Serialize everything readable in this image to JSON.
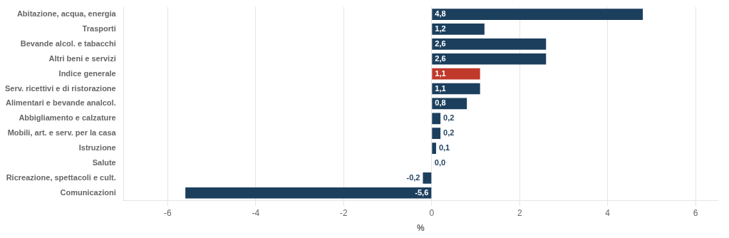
{
  "chart_data": {
    "type": "bar",
    "orientation": "horizontal",
    "categories": [
      "Abitazione, acqua, energia",
      "Trasporti",
      "Bevande alcol. e tabacchi",
      "Altri beni e servizi",
      "Indice generale",
      "Serv. ricettivi e di ristorazione",
      "Alimentari e bevande analcol.",
      "Abbigliamento e calzature",
      "Mobili, art. e serv. per la casa",
      "Istruzione",
      "Salute",
      "Ricreazione, spettacoli e cult.",
      "Comunicazioni"
    ],
    "values": [
      4.8,
      1.2,
      2.6,
      2.6,
      1.1,
      1.1,
      0.8,
      0.2,
      0.2,
      0.1,
      0.0,
      -0.2,
      -5.6
    ],
    "value_labels": [
      "4,8",
      "1,2",
      "2,6",
      "2,6",
      "1,1",
      "1,1",
      "0,8",
      "0,2",
      "0,2",
      "0,1",
      "0,0",
      "-0,2",
      "-5,6"
    ],
    "colors": [
      "#1c3f5e",
      "#1c3f5e",
      "#1c3f5e",
      "#1c3f5e",
      "#c0392b",
      "#1c3f5e",
      "#1c3f5e",
      "#1c3f5e",
      "#1c3f5e",
      "#1c3f5e",
      "#1c3f5e",
      "#1c3f5e",
      "#1c3f5e"
    ],
    "xlim": [
      -7.0,
      6.5
    ],
    "xticks": [
      -6,
      -4,
      -2,
      0,
      2,
      4,
      6
    ],
    "xlabel": "%",
    "grid": true,
    "data_labels": true
  }
}
